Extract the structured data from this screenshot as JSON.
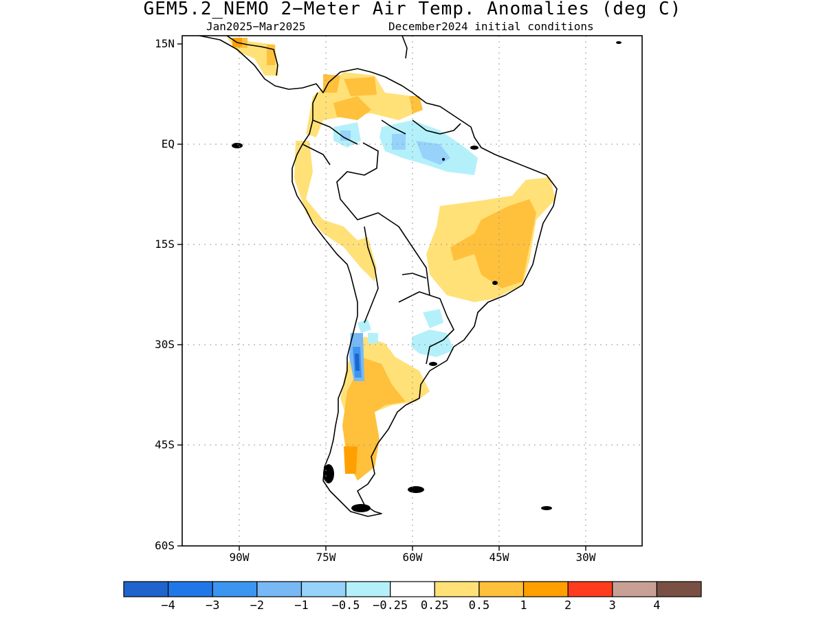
{
  "header": {
    "title": "GEM5.2_NEMO 2−Meter Air Temp. Anomalies (deg C)",
    "period": "Jan2025−Mar2025",
    "initial_conditions": "December2024 initial conditions"
  },
  "map": {
    "lat_labels": [
      "15N",
      "EQ",
      "15S",
      "30S",
      "45S",
      "60S"
    ],
    "lon_labels": [
      "90W",
      "75W",
      "60W",
      "45W",
      "30W"
    ]
  },
  "colorbar": {
    "labels": [
      "−4",
      "−3",
      "−2",
      "−1",
      "−0.5",
      "−0.25",
      "0.25",
      "0.5",
      "1",
      "2",
      "3",
      "4"
    ],
    "colors": [
      "#1e64cc",
      "#2078e8",
      "#3c96f0",
      "#78b9f5",
      "#96d2fa",
      "#b4f0fa",
      "#ffffff",
      "#ffe178",
      "#ffc03c",
      "#ffa000",
      "#ff3c1e",
      "#c8a096",
      "#7a5044"
    ]
  }
}
